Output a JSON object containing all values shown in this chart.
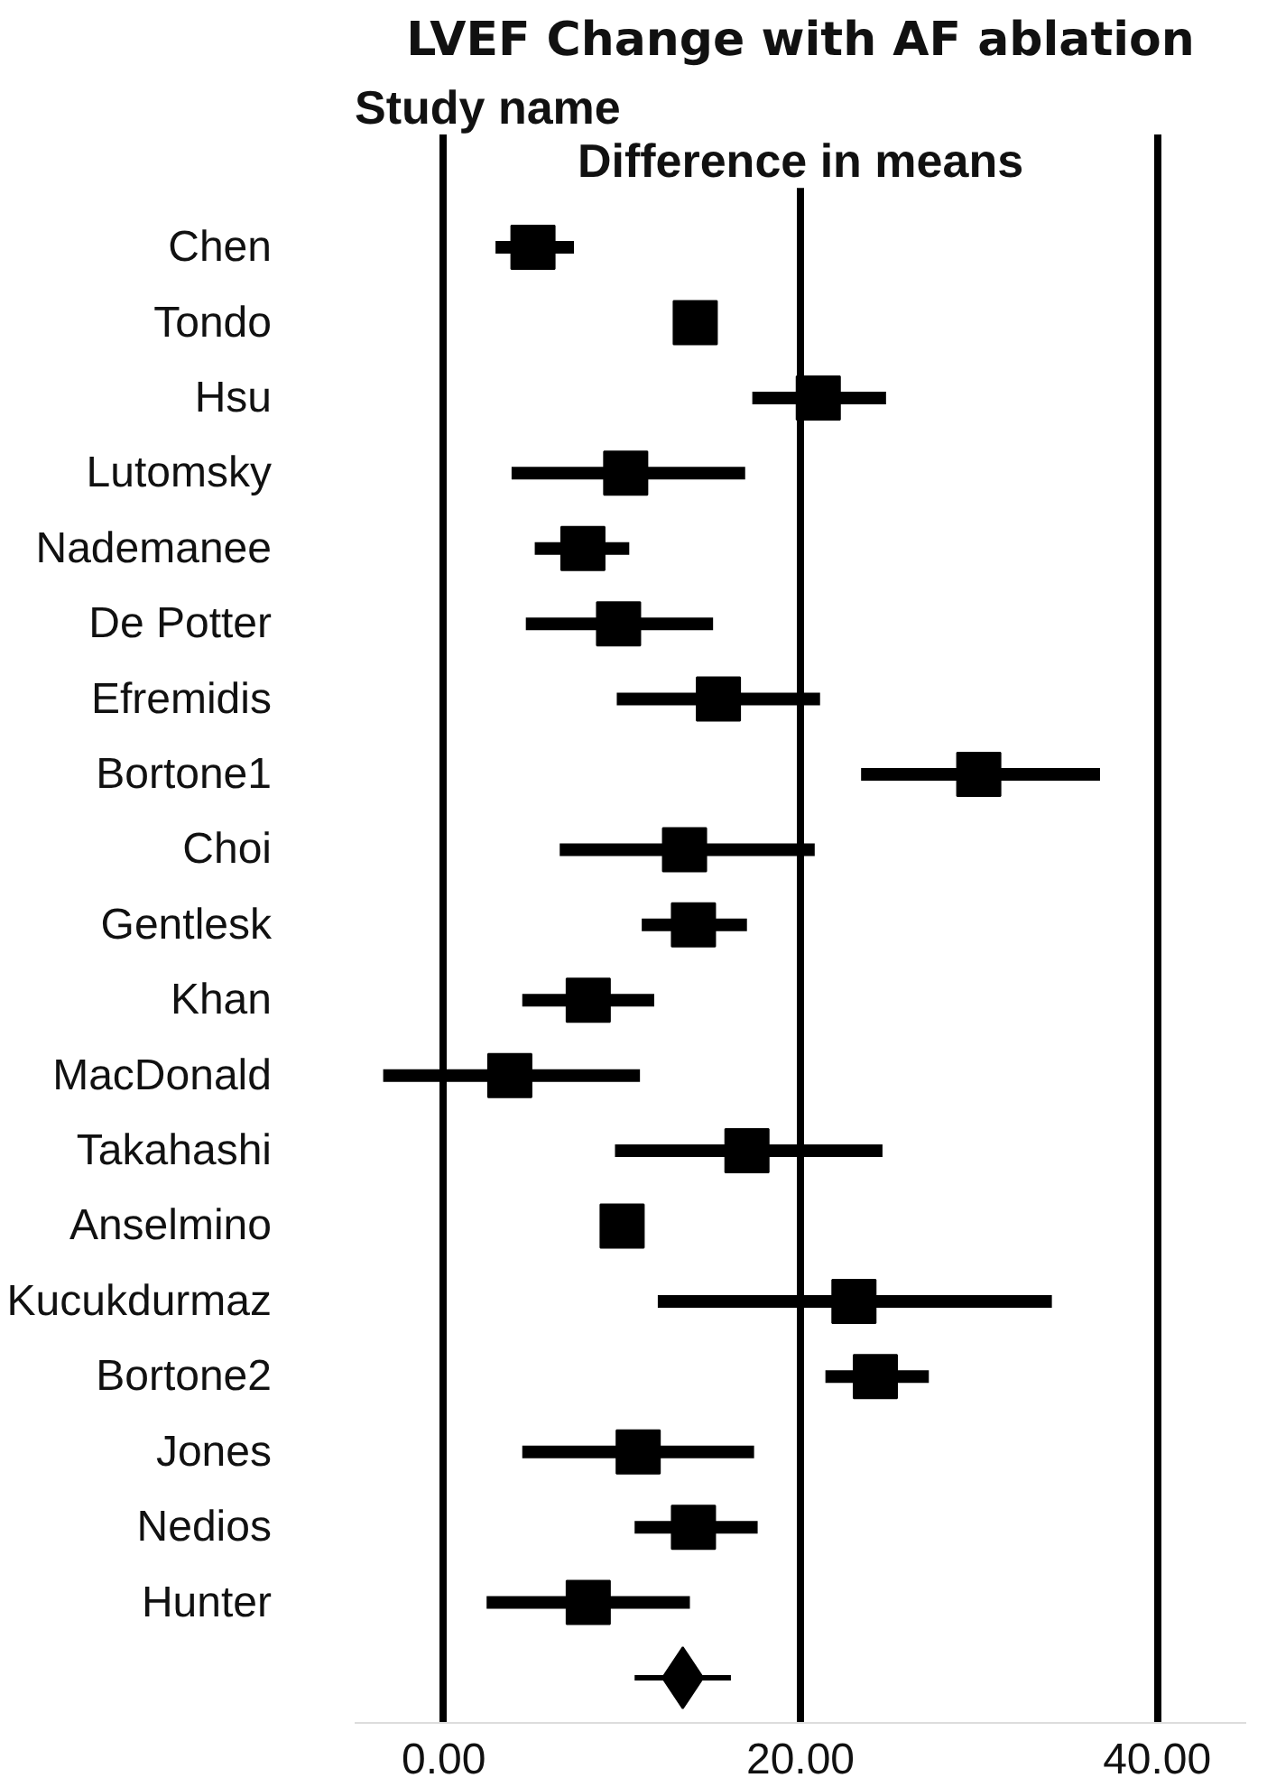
{
  "chart_data": {
    "type": "scatter",
    "orientation": "horizontal",
    "title": "LVEF Change with AF ablation",
    "xlabel": "Difference in means",
    "ylabel": "Study name",
    "categories": [
      "Chen",
      "Tondo",
      "Hsu",
      "Lutomsky",
      "Nademanee",
      "De Potter",
      "Efremidis",
      "Bortone1",
      "Choi",
      "Gentlesk",
      "Khan",
      "MacDonald",
      "Takahashi",
      "Anselmino",
      "Kucukdurmaz",
      "Bortone2",
      "Jones",
      "Nedios",
      "Hunter",
      null
    ],
    "series": [
      {
        "color": "#000000",
        "marker": "square",
        "values": [
          5.0,
          14.1,
          21.0,
          10.2,
          7.8,
          9.8,
          15.4,
          30.0,
          13.5,
          14.0,
          8.1,
          3.7,
          17.0,
          10.0,
          23.0,
          24.2,
          10.9,
          14.0,
          8.1,
          null
        ],
        "errors": [
          [
            2.9,
            7.3
          ],
          null,
          [
            17.3,
            24.8
          ],
          [
            3.8,
            16.9
          ],
          [
            5.1,
            10.4
          ],
          [
            4.6,
            15.1
          ],
          [
            9.7,
            21.1
          ],
          [
            23.4,
            36.8
          ],
          [
            6.5,
            20.8
          ],
          [
            11.1,
            17.0
          ],
          [
            4.4,
            11.8
          ],
          [
            -3.4,
            11.0
          ],
          [
            9.6,
            24.6
          ],
          null,
          [
            12.0,
            34.1
          ],
          [
            21.4,
            27.2
          ],
          [
            4.4,
            17.4
          ],
          [
            10.7,
            17.6
          ],
          [
            2.4,
            13.8
          ],
          null
        ]
      },
      {
        "color": "#000000",
        "marker": "diamond",
        "values": [
          null,
          null,
          null,
          null,
          null,
          null,
          null,
          null,
          null,
          null,
          null,
          null,
          null,
          null,
          null,
          null,
          null,
          null,
          null,
          13.4
        ],
        "errors": [
          null,
          null,
          null,
          null,
          null,
          null,
          null,
          null,
          null,
          null,
          null,
          null,
          null,
          null,
          null,
          null,
          null,
          null,
          null,
          [
            10.7,
            16.1
          ]
        ]
      }
    ],
    "xlim": [
      -5,
      45
    ],
    "xticks": [
      {
        "value": 0,
        "label": "0.00"
      },
      {
        "value": 20,
        "label": "20.00"
      },
      {
        "value": 40,
        "label": "40.00"
      }
    ],
    "grid": "x"
  }
}
